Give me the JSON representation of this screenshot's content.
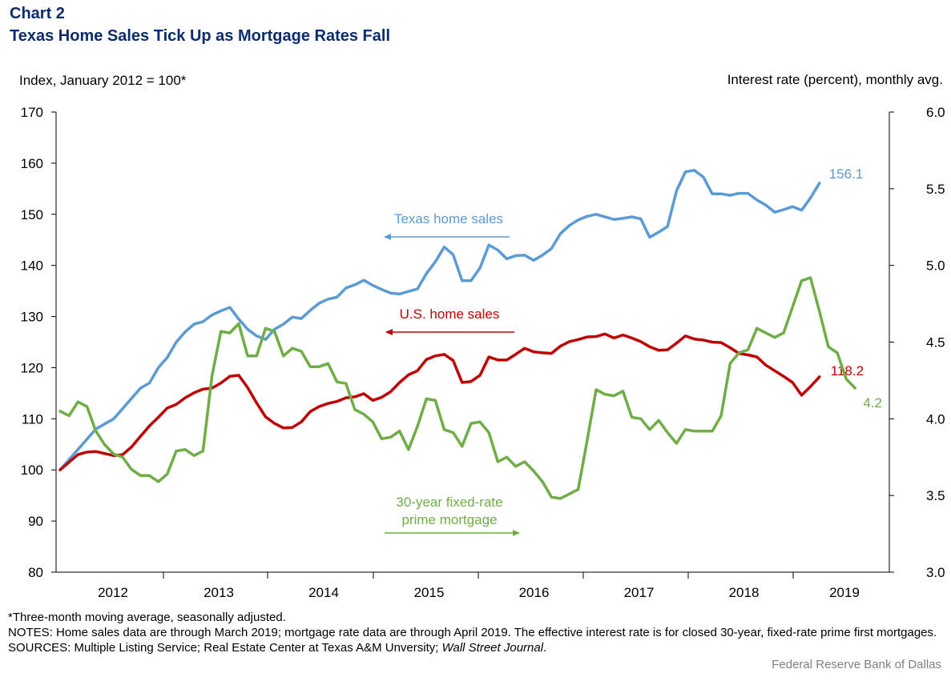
{
  "header": {
    "chart_label": "Chart 2",
    "title": "Texas Home Sales Tick Up as Mortgage Rates Fall",
    "left_axis_unit": "Index, January 2012 = 100*",
    "right_axis_unit": "Interest rate (percent), monthly  avg."
  },
  "chart_data": {
    "type": "line",
    "title": "Texas Home Sales Tick Up as Mortgage Rates Fall",
    "x_labels": [
      "2012",
      "2013",
      "2014",
      "2015",
      "2016",
      "2017",
      "2018",
      "2019"
    ],
    "y_left": {
      "label": "Index, January 2012 = 100*",
      "range": [
        80,
        170
      ],
      "ticks": [
        "80",
        "90",
        "100",
        "110",
        "120",
        "130",
        "140",
        "150",
        "160",
        "170"
      ]
    },
    "y_right": {
      "label": "Interest rate (percent), monthly  avg.",
      "range": [
        3.0,
        6.0
      ],
      "ticks": [
        "3.0",
        "3.5",
        "4.0",
        "4.5",
        "5.0",
        "5.5",
        "6.0"
      ]
    },
    "grid": false,
    "series": [
      {
        "name": "Texas home sales",
        "color": "#5b9bd5",
        "axis": "left",
        "start": "2012-01",
        "end_label": "156.1",
        "values": [
          100,
          102,
          104,
          106,
          108,
          109,
          110,
          112,
          114,
          116,
          117,
          120,
          122,
          125,
          127,
          128.5,
          129,
          130.3,
          131.1,
          131.8,
          129.5,
          127.5,
          126.2,
          125.5,
          127.5,
          128.5,
          129.9,
          129.6,
          131.2,
          132.6,
          133.4,
          133.8,
          135.6,
          136.2,
          137.1,
          136.1,
          135.3,
          134.6,
          134.4,
          134.9,
          135.4,
          138.4,
          140.7,
          143.6,
          142.1,
          137,
          137,
          139.5,
          144,
          143,
          141.3,
          141.9,
          142,
          141,
          142,
          143.3,
          146.2,
          147.8,
          148.9,
          149.6,
          150,
          149.5,
          149,
          149.2,
          149.5,
          149.1,
          145.5,
          146.5,
          147.6,
          154.6,
          158.3,
          158.6,
          157.3,
          154,
          154,
          153.7,
          154.1,
          154.1,
          152.8,
          151.8,
          150.4,
          150.9,
          151.5,
          150.8,
          153.2,
          156.1
        ]
      },
      {
        "name": "U.S. home sales",
        "color": "#c00000",
        "axis": "left",
        "start": "2012-01",
        "end_label": "118.2",
        "values": [
          100,
          101.5,
          103,
          103.5,
          103.6,
          103.2,
          102.8,
          103,
          104.5,
          106.6,
          108.6,
          110.3,
          112.1,
          112.8,
          114.1,
          115.1,
          115.8,
          116,
          117,
          118.3,
          118.5,
          116.1,
          113.1,
          110.4,
          109.1,
          108.2,
          108.3,
          109.4,
          111.4,
          112.4,
          113,
          113.4,
          114.1,
          114.3,
          114.9,
          113.6,
          114.2,
          115.3,
          117.1,
          118.6,
          119.4,
          121.6,
          122.3,
          122.6,
          121.4,
          117.1,
          117.3,
          118.5,
          122.1,
          121.5,
          121.5,
          122.6,
          123.8,
          123.1,
          122.9,
          122.8,
          124.2,
          125.1,
          125.5,
          126,
          126.1,
          126.6,
          125.8,
          126.4,
          125.8,
          125.1,
          124.1,
          123.4,
          123.5,
          124.8,
          126.2,
          125.6,
          125.4,
          125,
          124.9,
          123.9,
          122.8,
          122.5,
          122.1,
          120.5,
          119.4,
          118.3,
          117.1,
          114.6,
          116.3,
          118.2
        ]
      },
      {
        "name": "30-year fixed-rate prime mortgage",
        "color": "#70ad47",
        "axis": "right",
        "start": "2012-01",
        "end_label": "4.2",
        "values": [
          4.05,
          4.02,
          4.11,
          4.08,
          3.92,
          3.83,
          3.77,
          3.75,
          3.67,
          3.63,
          3.63,
          3.59,
          3.64,
          3.79,
          3.8,
          3.76,
          3.79,
          4.28,
          4.57,
          4.56,
          4.62,
          4.41,
          4.41,
          4.59,
          4.57,
          4.41,
          4.46,
          4.44,
          4.34,
          4.34,
          4.36,
          4.24,
          4.23,
          4.06,
          4.03,
          3.98,
          3.87,
          3.88,
          3.92,
          3.8,
          3.95,
          4.13,
          4.12,
          3.93,
          3.91,
          3.82,
          3.97,
          3.98,
          3.91,
          3.72,
          3.75,
          3.69,
          3.72,
          3.66,
          3.59,
          3.49,
          3.48,
          3.51,
          3.54,
          3.86,
          4.19,
          4.16,
          4.15,
          4.18,
          4.01,
          4.0,
          3.93,
          3.99,
          3.91,
          3.84,
          3.93,
          3.92,
          3.92,
          3.92,
          4.02,
          4.36,
          4.43,
          4.45,
          4.59,
          4.56,
          4.53,
          4.56,
          4.73,
          4.9,
          4.92,
          4.7,
          4.47,
          4.43,
          4.26,
          4.2
        ]
      }
    ],
    "annotations": [
      {
        "text": "Texas home sales",
        "color": "#5b9bd5",
        "arrow": "left"
      },
      {
        "text": "U.S. home sales",
        "color": "#c00000",
        "arrow": "left"
      },
      {
        "text": "30-year fixed-rate",
        "text2": "prime mortgage",
        "color": "#70ad47",
        "arrow": "right"
      }
    ]
  },
  "notes": {
    "line1": "*Three-month moving average, seasonally adjusted.",
    "line2": "NOTES: Home sales data are through March 2019; mortgage rate data are through April 2019. The effective interest rate is for closed 30-year, fixed-rate prime first mortgages.",
    "sources_prefix": "SOURCES: Multiple Listing Service; Real Estate Center at Texas A&M Unversity; ",
    "sources_italic": "Wall Street Journal",
    "sources_suffix": ".",
    "credit": "Federal Reserve  Bank of Dallas"
  }
}
